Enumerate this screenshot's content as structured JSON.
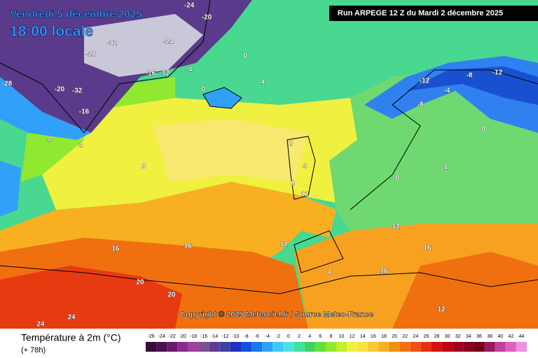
{
  "header": {
    "title": "Vendredi 5 décembre 2025",
    "time": "18:00 locale",
    "run": "Run ARPEGE 12 Z du Mardi 2 décembre 2025"
  },
  "copyright": "Copyright © 2025 Meteociel.fr / Source Meteo-France",
  "legend": {
    "title": "Température à 2m (°C)",
    "subtitle": "(+ 78h)",
    "ticks": [
      -26,
      -24,
      -22,
      -20,
      -18,
      -16,
      -14,
      -12,
      -10,
      -8,
      -6,
      -4,
      -2,
      0,
      2,
      4,
      6,
      8,
      10,
      12,
      14,
      16,
      18,
      20,
      22,
      24,
      26,
      28,
      30,
      32,
      34,
      36,
      38,
      40,
      42,
      44
    ],
    "colors": [
      "#3a0a3a",
      "#4b1050",
      "#6a1a6a",
      "#8a2a8a",
      "#a040a0",
      "#7a5090",
      "#603c90",
      "#4040a0",
      "#2030c0",
      "#1050e0",
      "#1878f0",
      "#30a0f8",
      "#40c8f8",
      "#50e0e0",
      "#40e0a0",
      "#40d060",
      "#60e040",
      "#90e830",
      "#c0f030",
      "#f0f040",
      "#f8e040",
      "#f8c830",
      "#f8b020",
      "#f09010",
      "#f07010",
      "#f05010",
      "#e83010",
      "#d81010",
      "#c00010",
      "#a00020",
      "#880020",
      "#700018",
      "#9a1a60",
      "#c040a0",
      "#e060c0",
      "#f090e0"
    ]
  },
  "map_labels": [
    -24,
    -20,
    -32,
    -28,
    -24,
    -16,
    -12,
    -4,
    -28,
    -32,
    -20,
    -16,
    0,
    0,
    4,
    4,
    4,
    8,
    8,
    12,
    16,
    16,
    20,
    20,
    24,
    24,
    -8,
    -12,
    -8,
    -12,
    0,
    4,
    4,
    12,
    12,
    16,
    16,
    -4,
    0,
    8,
    12,
    4
  ]
}
